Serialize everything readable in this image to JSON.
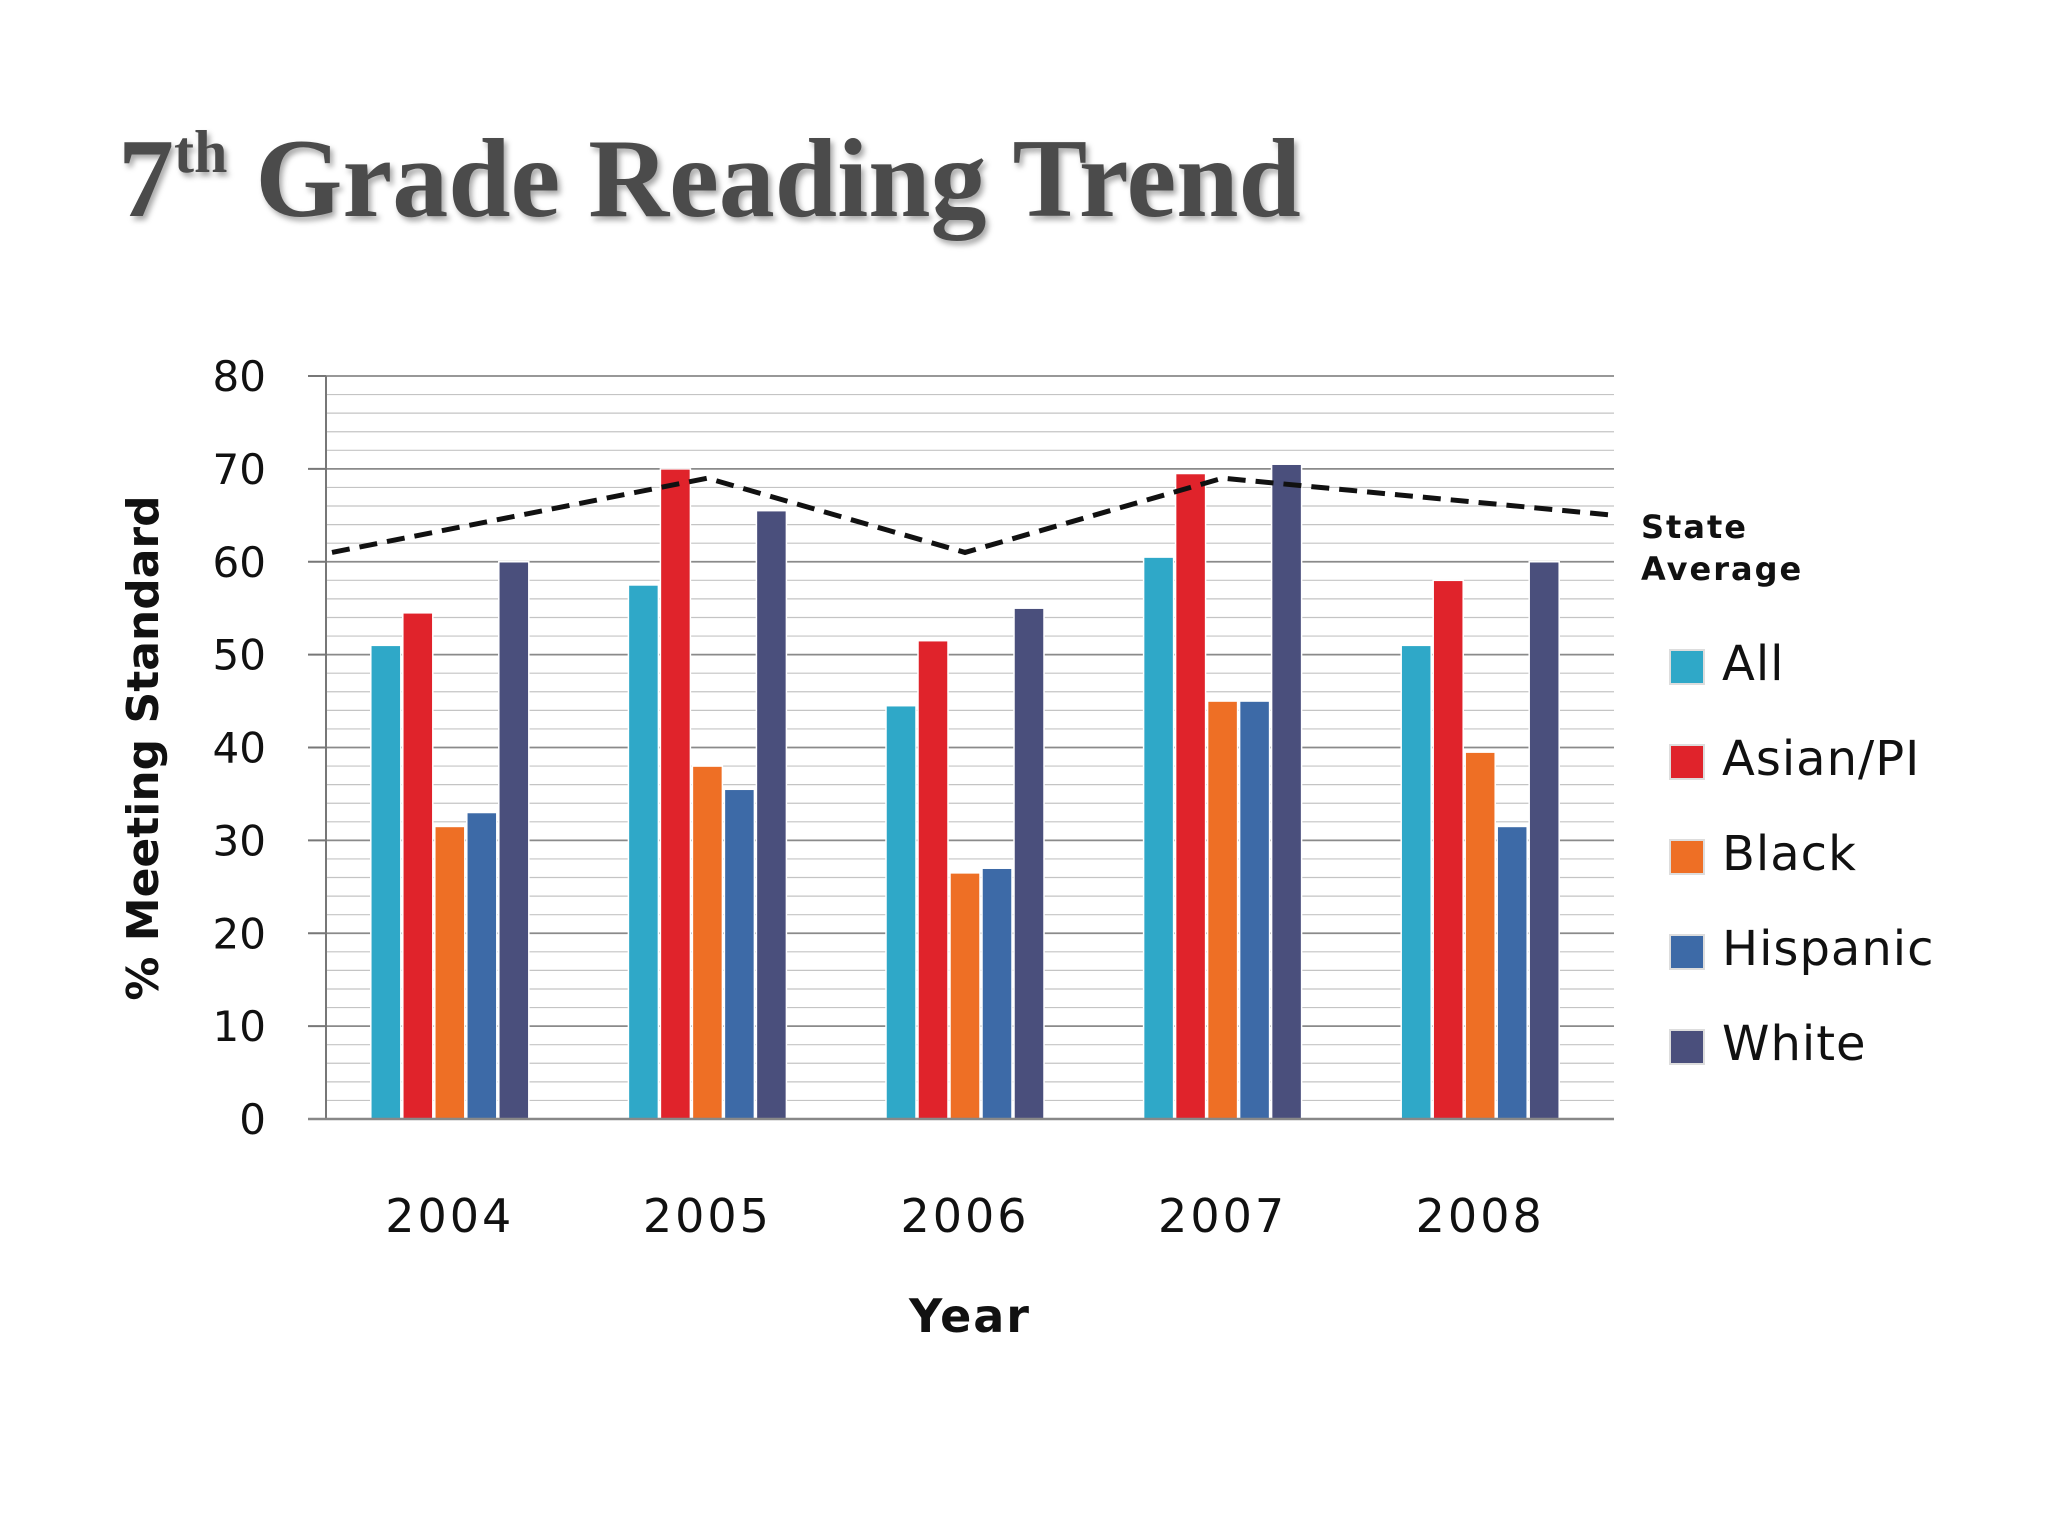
{
  "title": {
    "number": "7",
    "suffix": "th",
    "rest": " Grade Reading Trend"
  },
  "chart_data": {
    "type": "bar",
    "title": "7th Grade Reading Trend",
    "xlabel": "Year",
    "ylabel": "% Meeting Standard",
    "ylim": [
      0,
      80
    ],
    "ytick_step": 10,
    "minor_grid_step": 2,
    "grid": true,
    "legend_position": "right",
    "categories": [
      "2004",
      "2005",
      "2006",
      "2007",
      "2008"
    ],
    "series": [
      {
        "name": "All",
        "color": "#2fa8c8",
        "values": [
          51,
          57.5,
          44.5,
          60.5,
          51
        ]
      },
      {
        "name": "Asian/PI",
        "color": "#e0232b",
        "values": [
          54.5,
          70,
          51.5,
          69.5,
          58
        ]
      },
      {
        "name": "Black",
        "color": "#ee6f25",
        "values": [
          31.5,
          38,
          26.5,
          45,
          39.5
        ]
      },
      {
        "name": "Hispanic",
        "color": "#3d6aa7",
        "values": [
          33,
          35.5,
          27,
          45,
          31.5
        ]
      },
      {
        "name": "White",
        "color": "#4a4f7c",
        "values": [
          60,
          65.5,
          55,
          70.5,
          60
        ]
      }
    ],
    "state_average": {
      "label_lines": [
        "State",
        "Average"
      ],
      "style": "dashed",
      "color": "#111111",
      "values": [
        61,
        69,
        61,
        69,
        65
      ]
    }
  }
}
